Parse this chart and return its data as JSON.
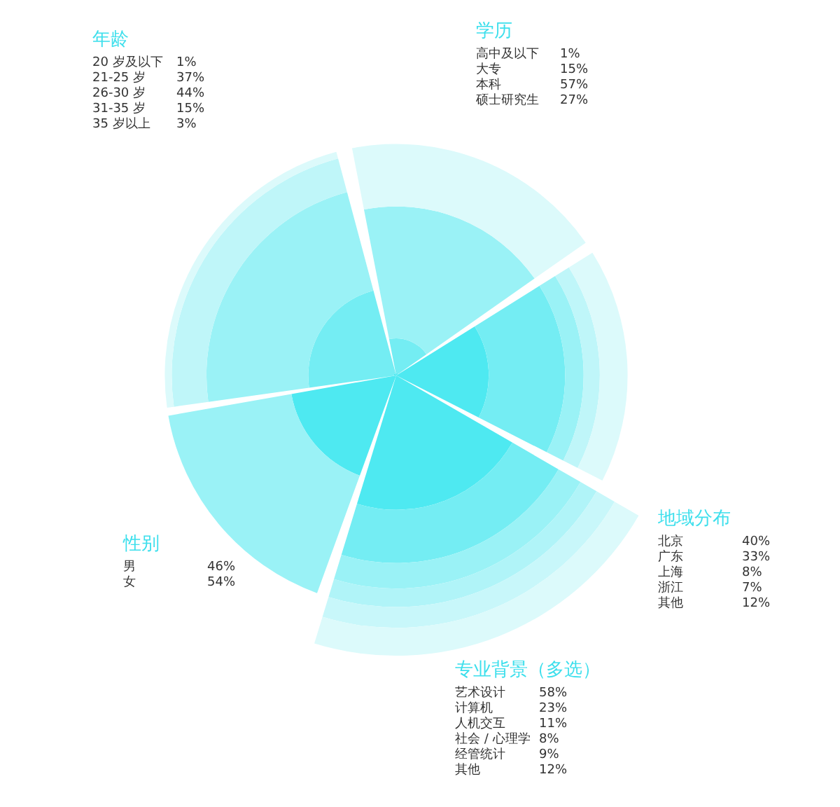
{
  "chart_data": [
    {
      "type": "other",
      "title": "年龄",
      "categories": [
        "20 岁及以下",
        "21-25 岁",
        "26-30 岁",
        "31-35 岁",
        "35 岁以上"
      ],
      "values": [
        1,
        37,
        44,
        15,
        3
      ],
      "value_labels": [
        "1%",
        "37%",
        "44%",
        "15%",
        "3%"
      ],
      "colors": [
        "#4ee9f1",
        "#74edf3",
        "#9af2f6",
        "#bff6f9",
        "#dcfafb"
      ]
    },
    {
      "type": "other",
      "title": "学历",
      "categories": [
        "高中及以下",
        "大专",
        "本科",
        "硕士研究生"
      ],
      "values": [
        1,
        15,
        57,
        27
      ],
      "value_labels": [
        "1%",
        "15%",
        "57%",
        "27%"
      ],
      "colors": [
        "#4ee9f1",
        "#74edf3",
        "#9af2f6",
        "#dcfafb"
      ]
    },
    {
      "type": "other",
      "title": "地域分布",
      "categories": [
        "北京",
        "广东",
        "上海",
        "浙江",
        "其他"
      ],
      "values": [
        40,
        33,
        8,
        7,
        12
      ],
      "value_labels": [
        "40%",
        "33%",
        "8%",
        "7%",
        "12%"
      ],
      "colors": [
        "#4ee9f1",
        "#74edf3",
        "#9af2f6",
        "#bff6f9",
        "#dcfafb"
      ]
    },
    {
      "type": "other",
      "title": "性别",
      "categories": [
        "男",
        "女"
      ],
      "values": [
        46,
        54
      ],
      "value_labels": [
        "46%",
        "54%"
      ],
      "colors": [
        "#4ee9f1",
        "#9af2f6"
      ]
    },
    {
      "type": "other",
      "title": "专业背景（多选）",
      "categories": [
        "艺术设计",
        "计算机",
        "人机交互",
        "社会 / 心理学",
        "经管统计",
        "其他"
      ],
      "values": [
        58,
        23,
        11,
        8,
        9,
        12
      ],
      "value_labels": [
        "58%",
        "23%",
        "11%",
        "8%",
        "9%",
        "12%"
      ],
      "colors": [
        "#4ee9f1",
        "#74edf3",
        "#9af2f6",
        "#b0f4f8",
        "#c8f7fa",
        "#dcfafb"
      ]
    }
  ]
}
